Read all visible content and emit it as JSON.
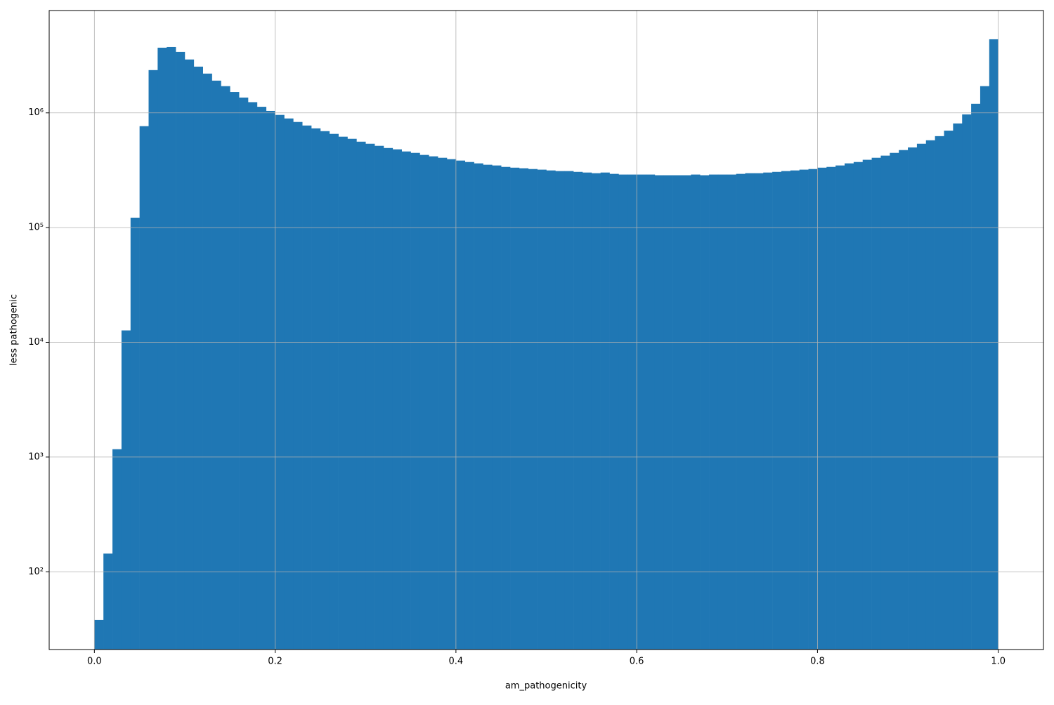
{
  "chart_data": {
    "type": "histogram",
    "xlabel": "am_pathogenicity",
    "ylabel": "less pathogenic",
    "color": "#1f77b4",
    "log_y": true,
    "grid": true,
    "xlim": [
      -0.05,
      1.05
    ],
    "ylim": [
      21,
      7800000
    ],
    "xticks": [
      {
        "value": 0,
        "label": "0.0"
      },
      0.2,
      0.4,
      0.6,
      0.8,
      {
        "value": 1,
        "label": "1.0"
      }
    ],
    "yticks": [
      {
        "value": 100,
        "label": "10²"
      },
      {
        "value": 1000,
        "label": "10³"
      },
      {
        "value": 10000,
        "label": "10⁴"
      },
      {
        "value": 100000,
        "label": "10⁵"
      },
      {
        "value": 1000000,
        "label": "10⁶"
      }
    ],
    "bins": [
      0,
      0.01,
      0.02,
      0.03,
      0.04,
      0.05,
      0.06,
      0.07,
      0.08,
      0.09,
      0.1,
      0.11,
      0.12,
      0.13,
      0.14,
      0.15,
      0.16,
      0.17,
      0.18,
      0.19,
      0.2,
      0.21,
      0.22,
      0.23,
      0.24,
      0.25,
      0.26,
      0.27,
      0.28,
      0.29,
      0.3,
      0.31,
      0.32,
      0.33,
      0.34,
      0.35,
      0.36,
      0.37,
      0.38,
      0.39,
      0.4,
      0.41,
      0.42,
      0.43,
      0.44,
      0.45,
      0.46,
      0.47,
      0.48,
      0.49,
      0.5,
      0.51,
      0.52,
      0.53,
      0.54,
      0.55,
      0.56,
      0.57,
      0.58,
      0.59,
      0.6,
      0.61,
      0.62,
      0.63,
      0.64,
      0.65,
      0.66,
      0.67,
      0.68,
      0.69,
      0.7,
      0.71,
      0.72,
      0.73,
      0.74,
      0.75,
      0.76,
      0.77,
      0.78,
      0.79,
      0.8,
      0.81,
      0.82,
      0.83,
      0.84,
      0.85,
      0.86,
      0.87,
      0.88,
      0.89,
      0.9,
      0.91,
      0.92,
      0.93,
      0.94,
      0.95,
      0.96,
      0.97,
      0.98,
      0.99,
      1
    ],
    "counts": [
      38,
      144,
      1170,
      12700,
      122000,
      766000,
      2360000,
      3700000,
      3750000,
      3400000,
      2920000,
      2530000,
      2200000,
      1910000,
      1710000,
      1520000,
      1360000,
      1240000,
      1130000,
      1040000,
      960000,
      894000,
      833000,
      776000,
      733000,
      693000,
      656000,
      620000,
      594000,
      561000,
      538000,
      516000,
      494000,
      481000,
      461000,
      448000,
      430000,
      418000,
      406000,
      395000,
      384000,
      373000,
      363000,
      353000,
      348000,
      338000,
      333000,
      329000,
      324000,
      320000,
      315000,
      311000,
      311000,
      306000,
      302000,
      298000,
      302000,
      294000,
      290000,
      290000,
      290000,
      290000,
      286000,
      286000,
      286000,
      286000,
      290000,
      286000,
      290000,
      290000,
      290000,
      294000,
      298000,
      298000,
      302000,
      306000,
      311000,
      315000,
      320000,
      324000,
      333000,
      338000,
      348000,
      363000,
      373000,
      390000,
      406000,
      424000,
      448000,
      474000,
      500000,
      538000,
      577000,
      627000,
      700000,
      809000,
      970000,
      1200000,
      1710000,
      4380000
    ]
  }
}
